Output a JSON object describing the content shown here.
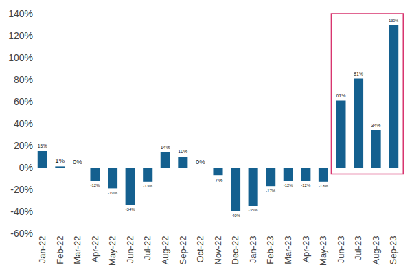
{
  "chart_data": {
    "type": "bar",
    "categories": [
      "Jan-22",
      "Feb-22",
      "Mar-22",
      "Apr-22",
      "May-22",
      "Jun-22",
      "Jul-22",
      "Aug-22",
      "Sep-22",
      "Oct-22",
      "Nov-22",
      "Dec-22",
      "Jan-23",
      "Feb-23",
      "Mar-23",
      "Apr-23",
      "May-23",
      "Jun-23",
      "Jul-23",
      "Aug-23",
      "Sep-23"
    ],
    "values": [
      15,
      1,
      0,
      -12,
      -19,
      -34,
      -13,
      14,
      10,
      0,
      -7,
      -40,
      -35,
      -17,
      -12,
      -12,
      -13,
      61,
      81,
      34,
      130
    ],
    "value_labels": [
      "15%",
      "1%",
      "0%",
      "-12%",
      "-19%",
      "-34%",
      "-13%",
      "14%",
      "10%",
      "0%",
      "-7%",
      "-40%",
      "-35%",
      "-17%",
      "-12%",
      "-12%",
      "-13%",
      "61%",
      "81%",
      "34%",
      "130%"
    ],
    "color": "#14608f",
    "ylim": [
      -60,
      140
    ],
    "yticks": [
      {
        "value": -60,
        "label": "-60%"
      },
      {
        "value": -40,
        "label": "-40%"
      },
      {
        "value": -20,
        "label": "-20%"
      },
      {
        "value": 0,
        "label": "0%"
      },
      {
        "value": 20,
        "label": "20%"
      },
      {
        "value": 40,
        "label": "40%"
      },
      {
        "value": 60,
        "label": "60%"
      },
      {
        "value": 80,
        "label": "80%"
      },
      {
        "value": 100,
        "label": "100%"
      },
      {
        "value": 120,
        "label": "120%"
      },
      {
        "value": 140,
        "label": "140%"
      }
    ],
    "grid": false,
    "data_labels": true
  }
}
